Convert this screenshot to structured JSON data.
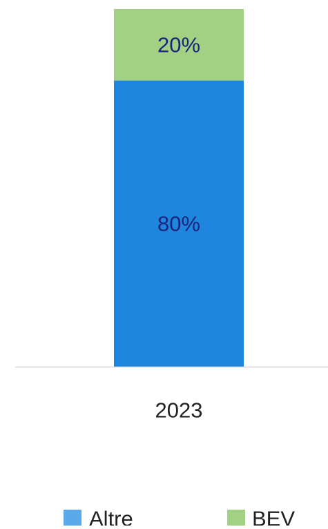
{
  "chart_data": {
    "type": "bar",
    "stacked": true,
    "categories": [
      "2023"
    ],
    "series": [
      {
        "name": "Altre",
        "values": [
          80
        ],
        "label": "80%",
        "color": "#1e86dd",
        "legend_color": "#5aaaea"
      },
      {
        "name": "BEV",
        "values": [
          20
        ],
        "label": "20%",
        "color": "#a3d184",
        "legend_color": "#a3d184"
      }
    ],
    "unit": "%",
    "ylim": [
      0,
      100
    ],
    "title": "",
    "xlabel": "",
    "ylabel": "",
    "grid": false,
    "legend_position": "bottom",
    "label_color": "#1a237e",
    "axis_line_color": "#d9d9d9",
    "tick_label_color": "#222222"
  }
}
